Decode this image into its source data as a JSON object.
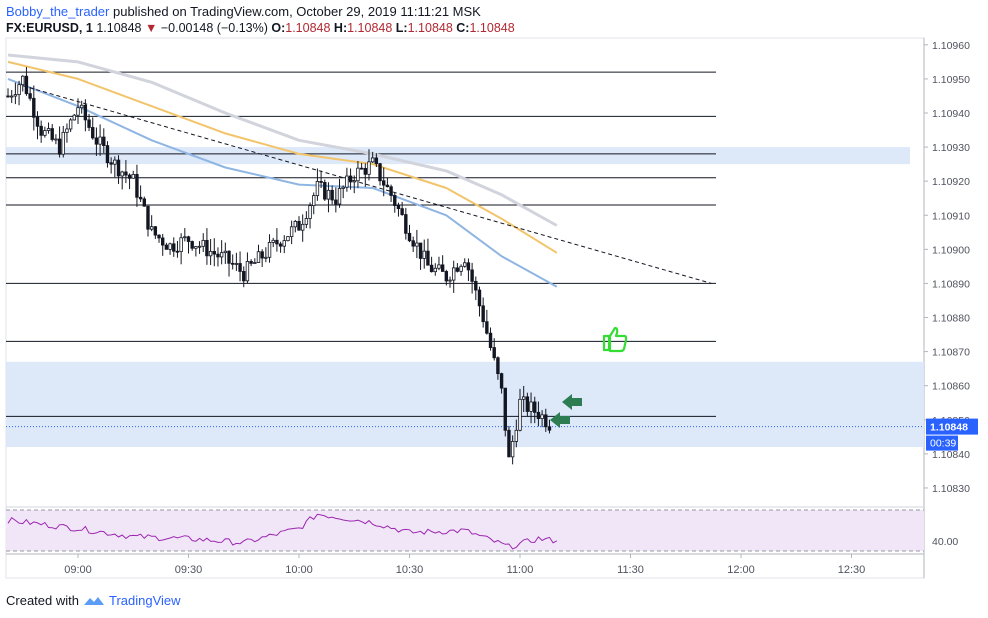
{
  "header": {
    "author": "Bobby_the_trader",
    "published_text": "published on TradingView.com, October 29, 2019 11:11:21 MSK",
    "symbol": "FX:EURUSD, 1",
    "last": "1.10848",
    "change": "−0.00148 (−0.13%)",
    "o_label": "O:",
    "o": "1.10848",
    "h_label": "H:",
    "h": "1.10848",
    "l_label": "L:",
    "l": "1.10848",
    "c_label": "C:",
    "c": "1.10848"
  },
  "footer": {
    "created_with": "Created with",
    "brand": "TradingView"
  },
  "colors": {
    "up": "#131722",
    "down": "#131722",
    "ema_blue": "#8fb5e3",
    "ema_orange": "#f2c46b",
    "ema_grey": "#d1d4dc",
    "zone": "#dbe8f9",
    "rsi_line": "#9c27b0",
    "rsi_band": "#f1e6f8",
    "price_tag": "#2962ff",
    "arrow": "#2e7d52",
    "thumb": "#33dd33"
  },
  "chart_data": {
    "type": "candlestick",
    "timeframe": "1m",
    "x_axis": {
      "labels": [
        "09:00",
        "09:30",
        "10:00",
        "10:30",
        "11:00",
        "11:30",
        "12:00",
        "12:30"
      ]
    },
    "y_axis": {
      "range": [
        1.10825,
        1.10962
      ],
      "labels": [
        "1.10960",
        "1.10950",
        "1.10940",
        "1.10930",
        "1.10920",
        "1.10910",
        "1.10900",
        "1.10890",
        "1.10880",
        "1.10870",
        "1.10860",
        "1.10850",
        "1.10840",
        "1.10830"
      ]
    },
    "price_label": "1.10848",
    "countdown": "00:39",
    "rsi_label": "40.00",
    "horizontal_levels": [
      1.10952,
      1.10939,
      1.10928,
      1.10921,
      1.10913,
      1.1089,
      1.10873,
      1.10851
    ],
    "zones": [
      {
        "from": 1.10925,
        "to": 1.1093
      },
      {
        "from": 1.10842,
        "to": 1.10867
      }
    ],
    "trendline": {
      "from": {
        "time": "08:45",
        "price": 1.10948
      },
      "to": {
        "time": "11:52",
        "price": 1.1089
      }
    },
    "close_series": [
      {
        "time": "08:41",
        "close": 1.10945
      },
      {
        "time": "08:45",
        "close": 1.1095
      },
      {
        "time": "08:50",
        "close": 1.10935
      },
      {
        "time": "08:55",
        "close": 1.1093
      },
      {
        "time": "09:00",
        "close": 1.10942
      },
      {
        "time": "09:05",
        "close": 1.10932
      },
      {
        "time": "09:10",
        "close": 1.10925
      },
      {
        "time": "09:15",
        "close": 1.1092
      },
      {
        "time": "09:20",
        "close": 1.10905
      },
      {
        "time": "09:25",
        "close": 1.10901
      },
      {
        "time": "09:30",
        "close": 1.10903
      },
      {
        "time": "09:35",
        "close": 1.109
      },
      {
        "time": "09:40",
        "close": 1.10897
      },
      {
        "time": "09:45",
        "close": 1.10893
      },
      {
        "time": "09:50",
        "close": 1.10898
      },
      {
        "time": "09:55",
        "close": 1.10903
      },
      {
        "time": "10:00",
        "close": 1.10907
      },
      {
        "time": "10:05",
        "close": 1.10918
      },
      {
        "time": "10:10",
        "close": 1.10915
      },
      {
        "time": "10:15",
        "close": 1.10922
      },
      {
        "time": "10:20",
        "close": 1.10925
      },
      {
        "time": "10:25",
        "close": 1.10916
      },
      {
        "time": "10:30",
        "close": 1.10905
      },
      {
        "time": "10:35",
        "close": 1.10895
      },
      {
        "time": "10:40",
        "close": 1.10892
      },
      {
        "time": "10:45",
        "close": 1.10898
      },
      {
        "time": "10:50",
        "close": 1.1088
      },
      {
        "time": "10:55",
        "close": 1.10858
      },
      {
        "time": "10:57",
        "close": 1.10838
      },
      {
        "time": "11:00",
        "close": 1.10855
      },
      {
        "time": "11:05",
        "close": 1.10852
      },
      {
        "time": "11:09",
        "close": 1.10848
      }
    ],
    "ema_blue": [
      {
        "time": "08:41",
        "value": 1.1095
      },
      {
        "time": "09:00",
        "value": 1.10942
      },
      {
        "time": "09:20",
        "value": 1.10932
      },
      {
        "time": "09:40",
        "value": 1.10924
      },
      {
        "time": "10:00",
        "value": 1.10919
      },
      {
        "time": "10:20",
        "value": 1.10918
      },
      {
        "time": "10:40",
        "value": 1.1091
      },
      {
        "time": "10:55",
        "value": 1.10898
      },
      {
        "time": "11:10",
        "value": 1.10889
      }
    ],
    "ema_orange": [
      {
        "time": "08:41",
        "value": 1.10955
      },
      {
        "time": "09:00",
        "value": 1.1095
      },
      {
        "time": "09:20",
        "value": 1.10942
      },
      {
        "time": "09:40",
        "value": 1.10934
      },
      {
        "time": "10:00",
        "value": 1.10928
      },
      {
        "time": "10:20",
        "value": 1.10925
      },
      {
        "time": "10:40",
        "value": 1.10918
      },
      {
        "time": "10:55",
        "value": 1.10909
      },
      {
        "time": "11:10",
        "value": 1.10899
      }
    ],
    "ema_grey": [
      {
        "time": "08:41",
        "value": 1.10957
      },
      {
        "time": "09:00",
        "value": 1.10955
      },
      {
        "time": "09:20",
        "value": 1.10949
      },
      {
        "time": "09:40",
        "value": 1.1094
      },
      {
        "time": "10:00",
        "value": 1.10932
      },
      {
        "time": "10:20",
        "value": 1.10928
      },
      {
        "time": "10:40",
        "value": 1.10923
      },
      {
        "time": "10:55",
        "value": 1.10916
      },
      {
        "time": "11:10",
        "value": 1.10907
      }
    ],
    "rsi": [
      {
        "time": "08:41",
        "value": 60
      },
      {
        "time": "09:00",
        "value": 52
      },
      {
        "time": "09:15",
        "value": 44
      },
      {
        "time": "09:30",
        "value": 42
      },
      {
        "time": "09:45",
        "value": 38
      },
      {
        "time": "10:00",
        "value": 52
      },
      {
        "time": "10:05",
        "value": 66
      },
      {
        "time": "10:20",
        "value": 58
      },
      {
        "time": "10:30",
        "value": 48
      },
      {
        "time": "10:45",
        "value": 50
      },
      {
        "time": "10:57",
        "value": 34
      },
      {
        "time": "11:05",
        "value": 42
      },
      {
        "time": "11:10",
        "value": 40
      }
    ],
    "rsi_range": [
      30,
      70
    ],
    "rsi_band": [
      30,
      70
    ]
  }
}
